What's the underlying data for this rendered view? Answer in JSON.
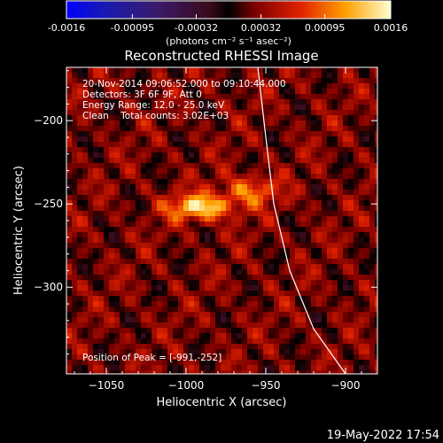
{
  "colorbar": {
    "tick_labels": [
      "-0.0016",
      "-0.00095",
      "-0.00032",
      "0.00032",
      "0.00095",
      "0.0016"
    ],
    "unit_label": "(photons cm⁻² s⁻¹ asec⁻²)",
    "range": [
      -0.0016,
      0.0016
    ]
  },
  "chart_data": {
    "type": "heatmap",
    "title": "Reconstructed RHESSI Image",
    "xlabel": "Heliocentric X (arcsec)",
    "ylabel": "Heliocentric Y (arcsec)",
    "xlim": [
      -1075,
      -880
    ],
    "ylim": [
      -352,
      -168
    ],
    "x_ticks": [
      -1050,
      -1000,
      -950,
      -900
    ],
    "y_ticks": [
      -200,
      -250,
      -300
    ],
    "x_tick_labels": [
      "−1050",
      "−1000",
      "−950",
      "−900"
    ],
    "y_tick_labels": [
      "−200",
      "−250",
      "−300"
    ],
    "info_lines": [
      "20-Nov-2014 09:06:52.000 to 09:10:44.000",
      "Detectors: 3F 6F 9F, Att 0",
      "Energy Range: 12.0 - 25.0 keV",
      "Clean    Total counts: 3.02E+03"
    ],
    "peak_label": "Position of Peak = [-991,-252]",
    "peak_position": [
      -991,
      -252
    ],
    "limb_curve": [
      [
        -955,
        -168
      ],
      [
        -950,
        -210
      ],
      [
        -945,
        -250
      ],
      [
        -935,
        -290
      ],
      [
        -920,
        -325
      ],
      [
        -900,
        -352
      ]
    ]
  },
  "timestamp": "19-May-2022 17:54"
}
